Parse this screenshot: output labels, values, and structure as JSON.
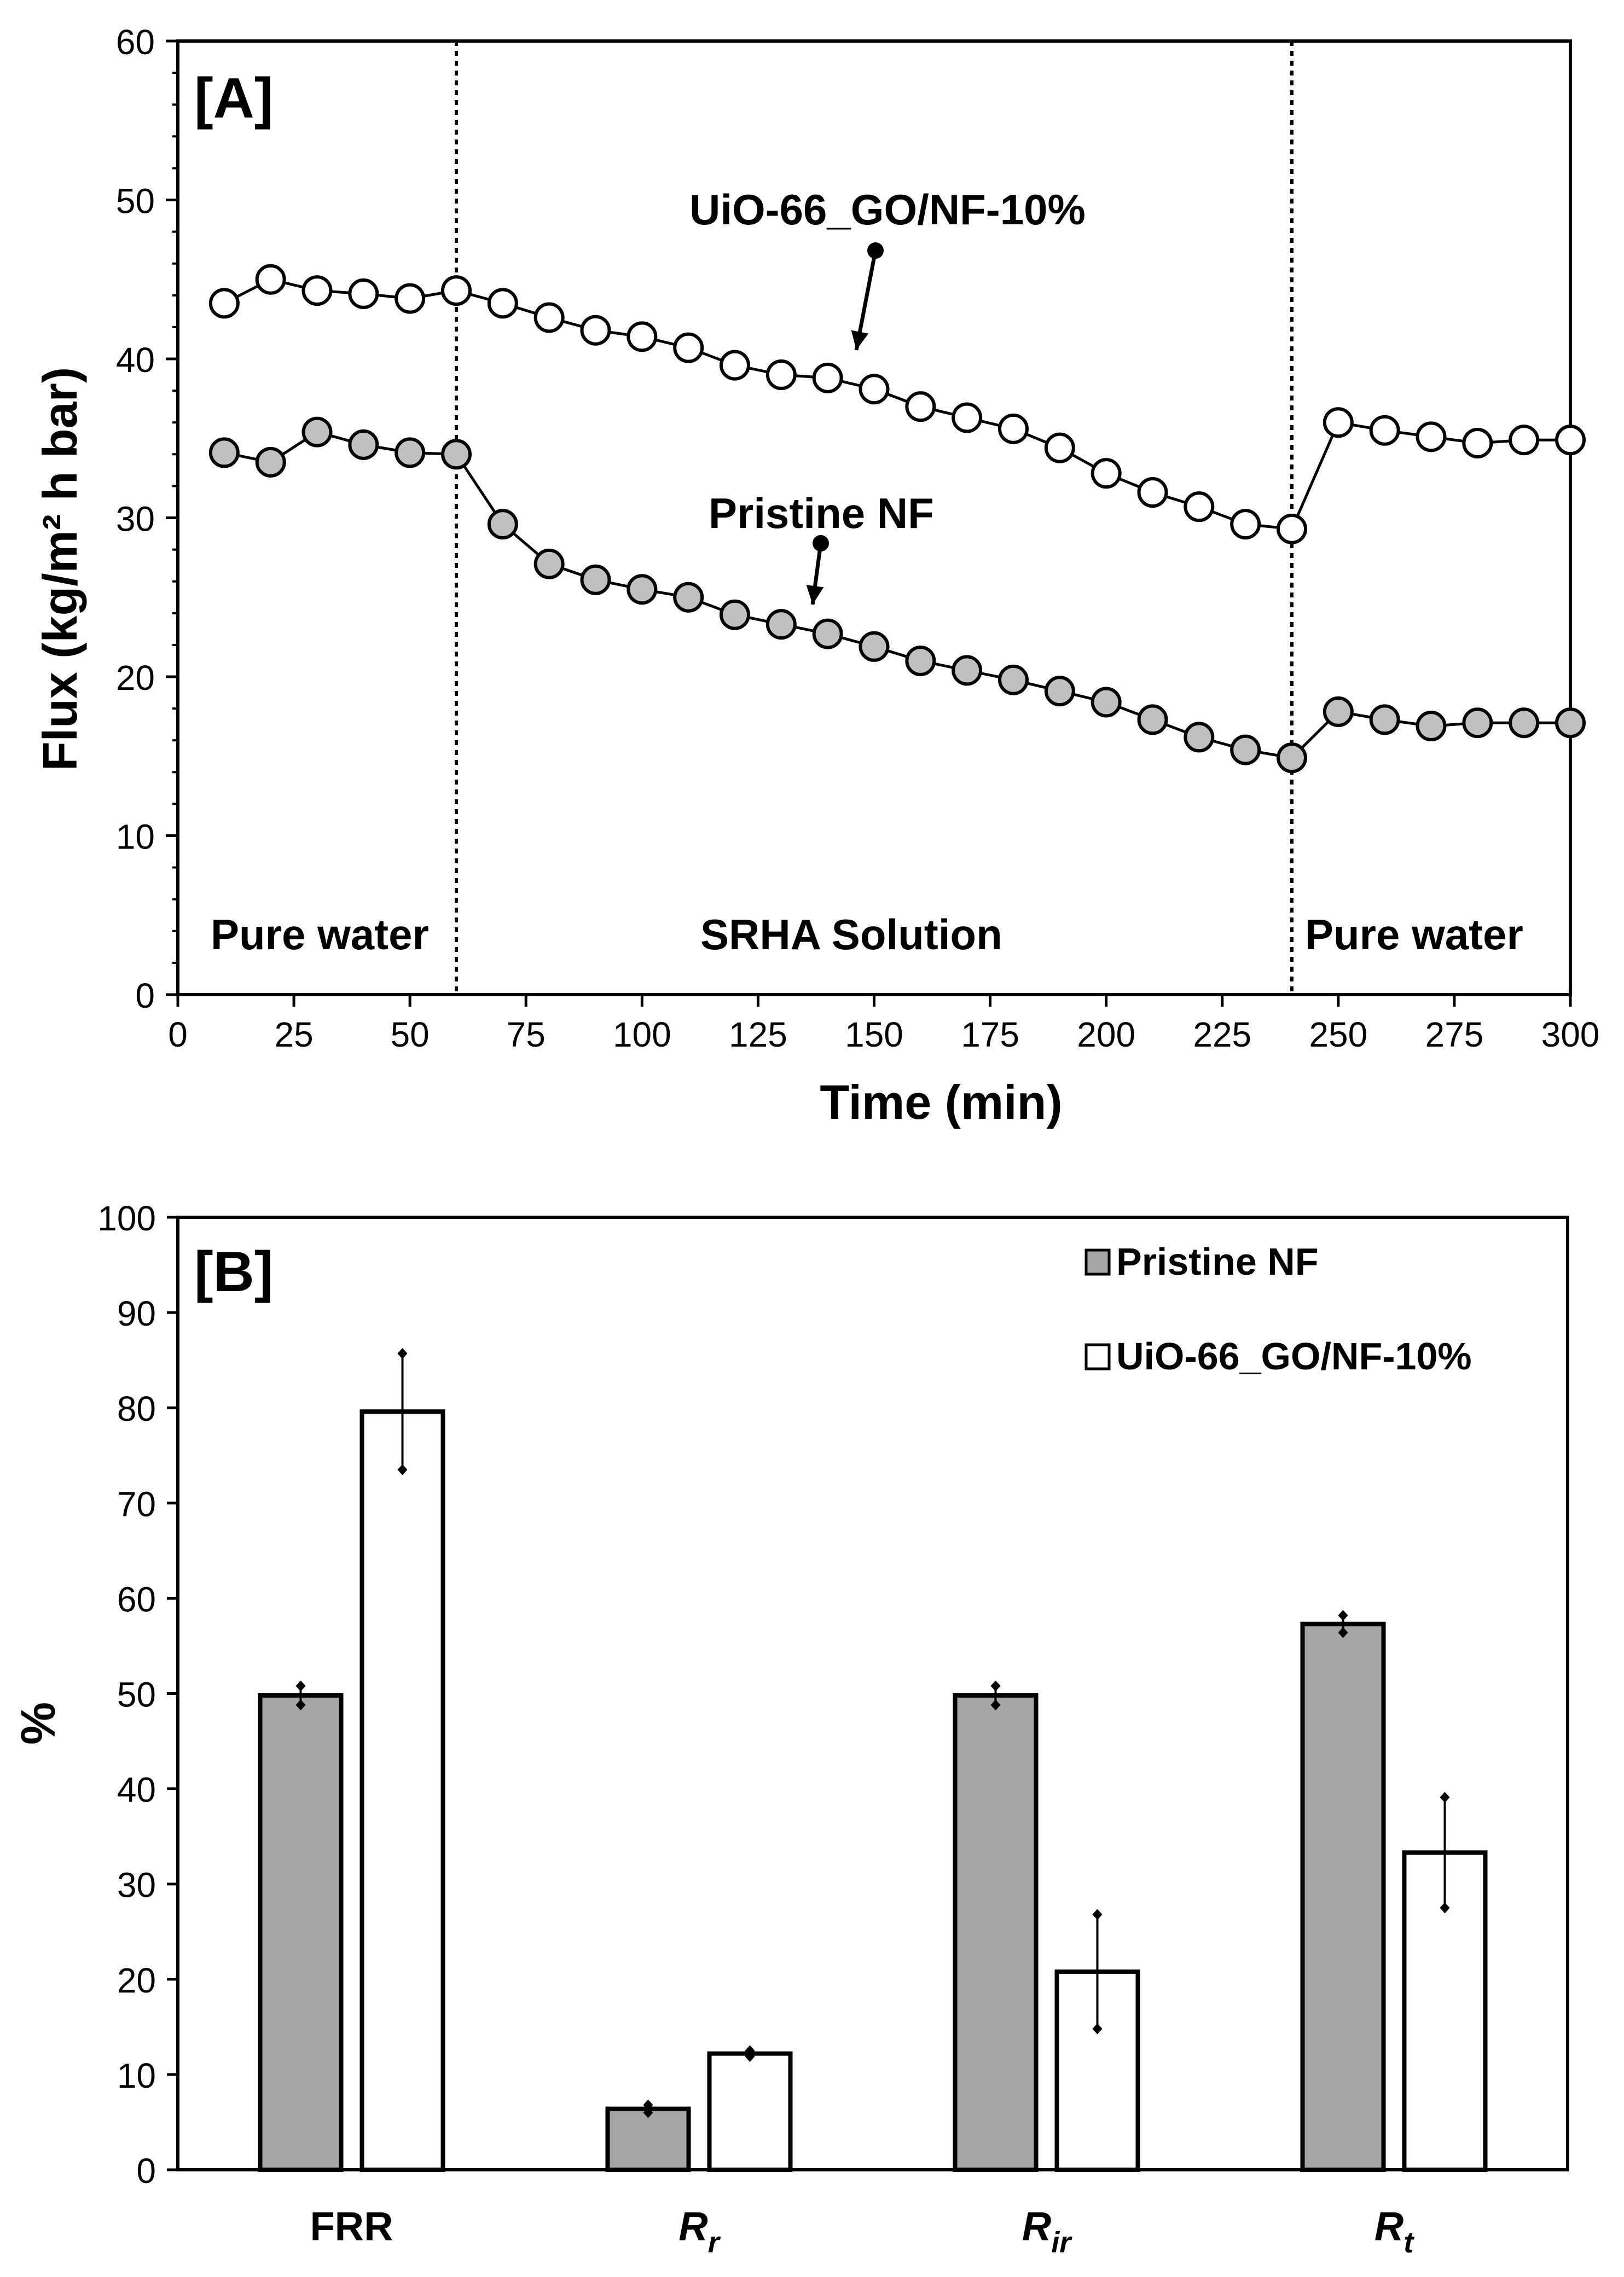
{
  "chart_data": [
    {
      "type": "line",
      "panel_label": "[A]",
      "xlabel": "Time (min)",
      "ylabel": "Flux (kg/m² h bar)",
      "xlim": [
        0,
        300
      ],
      "ylim": [
        0,
        60
      ],
      "xticks": [
        "0",
        "25",
        "50",
        "75",
        "100",
        "125",
        "150",
        "175",
        "200",
        "225",
        "250",
        "275",
        "300"
      ],
      "yticks": [
        "0",
        "10",
        "20",
        "30",
        "40",
        "50",
        "60"
      ],
      "vlines": [
        60,
        240
      ],
      "regions": [
        "Pure water",
        "SRHA Solution",
        "Pure water"
      ],
      "x": [
        10,
        20,
        30,
        40,
        50,
        60,
        70,
        80,
        90,
        100,
        110,
        120,
        130,
        140,
        150,
        160,
        170,
        180,
        190,
        200,
        210,
        220,
        230,
        240,
        250,
        260,
        270,
        280,
        290,
        300
      ],
      "series": [
        {
          "name": "UiO-66_GO/NF-10%",
          "fill": "#ffffff",
          "values": [
            43.5,
            45.0,
            44.3,
            44.1,
            43.8,
            44.3,
            43.5,
            42.6,
            41.8,
            41.4,
            40.7,
            39.6,
            39.0,
            38.8,
            38.1,
            37.0,
            36.3,
            35.6,
            34.4,
            32.8,
            31.6,
            30.7,
            29.6,
            29.3,
            36.0,
            35.5,
            35.1,
            34.7,
            34.9,
            34.9
          ]
        },
        {
          "name": "Pristine NF",
          "fill": "#c0c0c0",
          "values": [
            34.1,
            33.5,
            35.4,
            34.6,
            34.1,
            34.0,
            29.6,
            27.1,
            26.1,
            25.5,
            25.0,
            23.9,
            23.3,
            22.7,
            21.9,
            21.0,
            20.4,
            19.8,
            19.1,
            18.4,
            17.3,
            16.2,
            15.4,
            14.9,
            17.8,
            17.3,
            16.9,
            17.1,
            17.1,
            17.1
          ]
        }
      ],
      "annotations": [
        "UiO-66_GO/NF-10%",
        "Pristine NF"
      ]
    },
    {
      "type": "bar",
      "panel_label": "[B]",
      "ylabel": "%",
      "ylim": [
        0,
        100
      ],
      "yticks": [
        "0",
        "10",
        "20",
        "30",
        "40",
        "50",
        "60",
        "70",
        "80",
        "90",
        "100"
      ],
      "categories": [
        {
          "main": "FRR",
          "sub": ""
        },
        {
          "main": "R",
          "sub": "r"
        },
        {
          "main": "R",
          "sub": "ir"
        },
        {
          "main": "R",
          "sub": "t"
        }
      ],
      "series": [
        {
          "name": "Pristine NF",
          "color": "#a6a6a6",
          "values": [
            49.8,
            6.4,
            49.8,
            57.3
          ],
          "errors": [
            1.0,
            0.4,
            1.0,
            0.9
          ]
        },
        {
          "name": "UiO-66_GO/NF-10%",
          "color": "#ffffff",
          "values": [
            79.6,
            12.2,
            20.8,
            33.3
          ],
          "errors": [
            6.1,
            0.3,
            6.0,
            5.8
          ]
        }
      ]
    }
  ]
}
